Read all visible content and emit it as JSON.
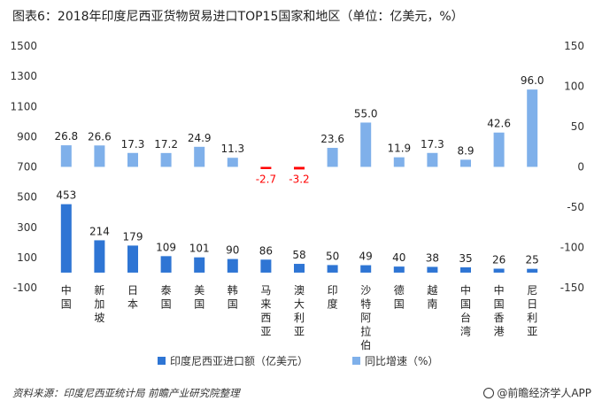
{
  "chart_data": {
    "type": "bar",
    "title": "图表6：2018年印度尼西亚货物贸易进口TOP15国家和地区（单位：亿美元，%）",
    "categories": [
      "中国",
      "新加坡",
      "日本",
      "泰国",
      "美国",
      "韩国",
      "马来西亚",
      "澳大利亚",
      "印度",
      "沙特阿拉伯",
      "德国",
      "越南",
      "中国台湾",
      "中国香港",
      "尼日利亚"
    ],
    "series": [
      {
        "name": "印度尼西亚进口额（亿美元）",
        "axis": "left",
        "color": "#2e75d4",
        "values": [
          453,
          214,
          179,
          109,
          101,
          90,
          86,
          58,
          50,
          49,
          40,
          38,
          35,
          26,
          25
        ]
      },
      {
        "name": "同比增速（%）",
        "axis": "right",
        "color": "#7fb0ea",
        "negative_color": "#ff0000",
        "values": [
          26.8,
          26.6,
          17.3,
          17.2,
          24.9,
          11.3,
          -2.7,
          -3.2,
          23.6,
          55.0,
          11.9,
          17.3,
          8.9,
          42.6,
          96.0
        ]
      }
    ],
    "data_labels": {
      "primary": [
        "453",
        "214",
        "179",
        "109",
        "101",
        "90",
        "86",
        "58",
        "50",
        "49",
        "40",
        "38",
        "35",
        "26",
        "25"
      ],
      "secondary": [
        "26.8",
        "26.6",
        "17.3",
        "17.2",
        "24.9",
        "11.3",
        "-2.7",
        "-3.2",
        "23.6",
        "55.0",
        "11.9",
        "17.3",
        "8.9",
        "42.6",
        "96.0"
      ]
    },
    "y_left": {
      "ylim": [
        -100,
        1500
      ],
      "ticks": [
        "1500",
        "1300",
        "1100",
        "900",
        "700",
        "500",
        "300",
        "100",
        "-100"
      ]
    },
    "y_right": {
      "ylim": [
        -150,
        150
      ],
      "ticks": [
        "150",
        "100",
        "50",
        "0",
        "-50",
        "-100",
        "-150"
      ]
    },
    "grid": false,
    "legend_position": "bottom"
  },
  "footer": {
    "source": "资料来源：印度尼西亚统计局 前瞻产业研究院整理",
    "brand": "@前瞻经济学人APP"
  }
}
